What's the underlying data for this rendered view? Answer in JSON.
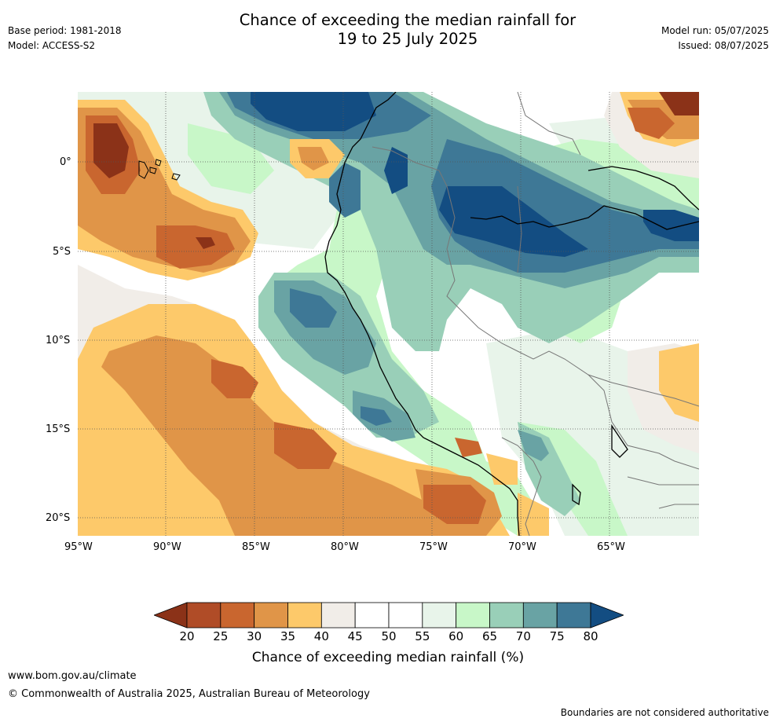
{
  "header": {
    "title_line1": "Chance of exceeding the median rainfall for",
    "title_line2": "19 to 25 July 2025",
    "base_period": "Base period: 1981-2018",
    "model": "Model: ACCESS-S2",
    "model_run": "Model run: 05/07/2025",
    "issued": "Issued: 08/07/2025"
  },
  "map": {
    "lat_labels": [
      "0°",
      "5°S",
      "10°S",
      "15°S",
      "20°S"
    ],
    "lon_labels": [
      "95°W",
      "90°W",
      "85°W",
      "80°W",
      "75°W",
      "70°W",
      "65°W"
    ]
  },
  "colorbar": {
    "ticks": [
      "20",
      "25",
      "30",
      "35",
      "40",
      "45",
      "50",
      "55",
      "60",
      "65",
      "70",
      "75",
      "80"
    ],
    "colors": [
      "#8b3218",
      "#b04c27",
      "#c9662f",
      "#e09548",
      "#fdc96a",
      "#f1ede8",
      "#ffffff",
      "#ffffff",
      "#e8f4ea",
      "#c8f7c8",
      "#99cfb8",
      "#69a3a4",
      "#3e7896",
      "#134d82"
    ],
    "title": "Chance of exceeding median rainfall (%)"
  },
  "footer": {
    "url": "www.bom.gov.au/climate",
    "copyright": "© Commonwealth of Australia 2025, Australian Bureau of Meteorology",
    "disclaimer": "Boundaries are not considered authoritative"
  }
}
